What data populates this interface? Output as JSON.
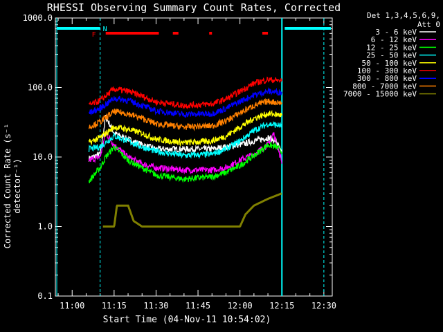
{
  "chart_data": {
    "type": "line",
    "title": "RHESSI Observing Summary Count Rates, Corrected",
    "xlabel": "Start Time (04-Nov-11 10:54:02)",
    "ylabel": "Corrected Count Rate (s⁻¹ detector⁻¹)",
    "yscale": "log",
    "ylim": [
      0.1,
      1000
    ],
    "xlim": [
      "10:54",
      "12:33"
    ],
    "xticks": [
      "11:00",
      "11:15",
      "11:30",
      "11:45",
      "12:00",
      "12:15",
      "12:30"
    ],
    "yticks": [
      "0.1",
      "1.0",
      "10.0",
      "100.0",
      "1000.0"
    ],
    "legend_title": [
      "Det 1,3,4,5,6,9,",
      "Att 0"
    ],
    "flags": {
      "F": "F",
      "N": "N"
    },
    "series": [
      {
        "name": "3 - 6 keV",
        "color": "#ffffff",
        "points": [
          [
            "11:06",
            9.5
          ],
          [
            "11:10",
            11
          ],
          [
            "11:12",
            38
          ],
          [
            "11:15",
            22
          ],
          [
            "11:20",
            18
          ],
          [
            "11:25",
            15
          ],
          [
            "11:30",
            13
          ],
          [
            "11:40",
            13
          ],
          [
            "11:50",
            13
          ],
          [
            "11:55",
            14
          ],
          [
            "12:00",
            15
          ],
          [
            "12:05",
            17
          ],
          [
            "12:10",
            19
          ],
          [
            "12:13",
            17
          ],
          [
            "12:15",
            11
          ]
        ]
      },
      {
        "name": "6 - 12 keV",
        "color": "#ff00ff",
        "points": [
          [
            "11:06",
            9
          ],
          [
            "11:10",
            10
          ],
          [
            "11:12",
            22
          ],
          [
            "11:15",
            15
          ],
          [
            "11:20",
            10
          ],
          [
            "11:25",
            8
          ],
          [
            "11:30",
            7
          ],
          [
            "11:40",
            6.5
          ],
          [
            "11:50",
            6.5
          ],
          [
            "11:55",
            7
          ],
          [
            "12:00",
            9
          ],
          [
            "12:05",
            11
          ],
          [
            "12:10",
            15
          ],
          [
            "12:12",
            22
          ],
          [
            "12:15",
            8.5
          ]
        ]
      },
      {
        "name": "12 - 25 keV",
        "color": "#00ff00",
        "points": [
          [
            "11:06",
            4.5
          ],
          [
            "11:10",
            7
          ],
          [
            "11:12",
            10
          ],
          [
            "11:15",
            14
          ],
          [
            "11:20",
            9
          ],
          [
            "11:25",
            7
          ],
          [
            "11:30",
            5.5
          ],
          [
            "11:40",
            4.8
          ],
          [
            "11:50",
            5.2
          ],
          [
            "11:55",
            6
          ],
          [
            "12:00",
            7.5
          ],
          [
            "12:05",
            10.5
          ],
          [
            "12:10",
            15
          ],
          [
            "12:13",
            14
          ],
          [
            "12:15",
            12
          ]
        ]
      },
      {
        "name": "25 - 50 keV",
        "color": "#00ffff",
        "points": [
          [
            "11:06",
            13
          ],
          [
            "11:10",
            14
          ],
          [
            "11:15",
            20
          ],
          [
            "11:20",
            17
          ],
          [
            "11:25",
            14
          ],
          [
            "11:30",
            12
          ],
          [
            "11:40",
            10.5
          ],
          [
            "11:50",
            11
          ],
          [
            "11:55",
            13
          ],
          [
            "12:00",
            17
          ],
          [
            "12:05",
            24
          ],
          [
            "12:10",
            30
          ],
          [
            "12:15",
            28
          ]
        ]
      },
      {
        "name": "50 - 100 keV",
        "color": "#ffff00",
        "points": [
          [
            "11:06",
            16
          ],
          [
            "11:10",
            19
          ],
          [
            "11:15",
            27
          ],
          [
            "11:20",
            25
          ],
          [
            "11:25",
            22
          ],
          [
            "11:30",
            18
          ],
          [
            "11:40",
            16
          ],
          [
            "11:50",
            17
          ],
          [
            "11:55",
            20
          ],
          [
            "12:00",
            27
          ],
          [
            "12:05",
            36
          ],
          [
            "12:10",
            42
          ],
          [
            "12:15",
            40
          ]
        ]
      },
      {
        "name": "100 - 300 keV",
        "color": "#ff0000",
        "points": [
          [
            "11:06",
            55
          ],
          [
            "11:10",
            65
          ],
          [
            "11:15",
            95
          ],
          [
            "11:20",
            88
          ],
          [
            "11:25",
            75
          ],
          [
            "11:30",
            62
          ],
          [
            "11:40",
            55
          ],
          [
            "11:50",
            58
          ],
          [
            "11:55",
            68
          ],
          [
            "12:00",
            88
          ],
          [
            "12:05",
            115
          ],
          [
            "12:10",
            130
          ],
          [
            "12:15",
            125
          ]
        ]
      },
      {
        "name": "300 - 800 keV",
        "color": "#0000ff",
        "points": [
          [
            "11:06",
            43
          ],
          [
            "11:10",
            50
          ],
          [
            "11:15",
            70
          ],
          [
            "11:20",
            65
          ],
          [
            "11:25",
            55
          ],
          [
            "11:30",
            46
          ],
          [
            "11:40",
            41
          ],
          [
            "11:50",
            42
          ],
          [
            "11:55",
            50
          ],
          [
            "12:00",
            63
          ],
          [
            "12:05",
            78
          ],
          [
            "12:10",
            88
          ],
          [
            "12:15",
            85
          ]
        ]
      },
      {
        "name": "800 - 7000 keV",
        "color": "#ff8000",
        "points": [
          [
            "11:06",
            27
          ],
          [
            "11:10",
            32
          ],
          [
            "11:15",
            45
          ],
          [
            "11:20",
            42
          ],
          [
            "11:25",
            36
          ],
          [
            "11:30",
            30
          ],
          [
            "11:40",
            27
          ],
          [
            "11:50",
            28
          ],
          [
            "11:55",
            33
          ],
          [
            "12:00",
            43
          ],
          [
            "12:05",
            55
          ],
          [
            "12:10",
            63
          ],
          [
            "12:15",
            60
          ]
        ]
      },
      {
        "name": "7000 - 15000 keV",
        "color": "#808000",
        "points": [
          [
            "11:11",
            1.0
          ],
          [
            "11:15",
            1.0
          ],
          [
            "11:16",
            2.0
          ],
          [
            "11:20",
            2.0
          ],
          [
            "11:22",
            1.2
          ],
          [
            "11:25",
            1.0
          ],
          [
            "11:45",
            1.0
          ],
          [
            "12:00",
            1.0
          ],
          [
            "12:02",
            1.5
          ],
          [
            "12:05",
            2.0
          ],
          [
            "12:10",
            2.5
          ],
          [
            "12:15",
            3.0
          ]
        ]
      }
    ]
  }
}
